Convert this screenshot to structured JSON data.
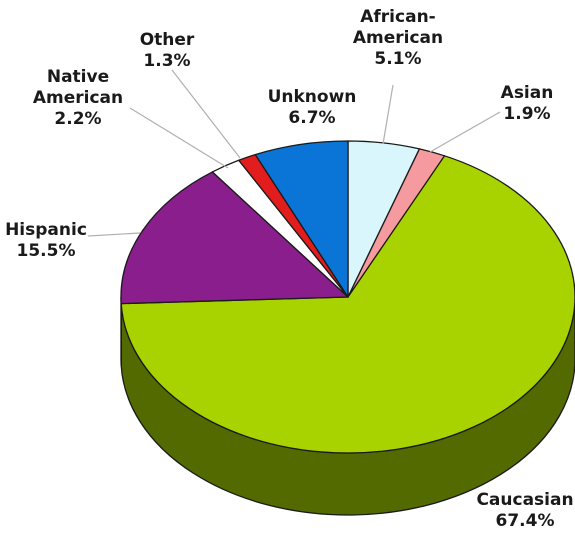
{
  "chart_data": {
    "type": "pie",
    "title": "",
    "style": "3d",
    "start": "12 o'clock, clockwise",
    "slices": [
      {
        "name": "African-American",
        "label": [
          "African-",
          "American"
        ],
        "value": 5.1,
        "value_label": "5.1%",
        "color": "#d8f6fb"
      },
      {
        "name": "Asian",
        "label": [
          "Asian"
        ],
        "value": 1.9,
        "value_label": "1.9%",
        "color": "#f59a9e"
      },
      {
        "name": "Caucasian",
        "label": [
          "Caucasian"
        ],
        "value": 67.4,
        "value_label": "67.4%",
        "color": "#a8d200",
        "side_color": "#526a00"
      },
      {
        "name": "Hispanic",
        "label": [
          "Hispanic"
        ],
        "value": 15.5,
        "value_label": "15.5%",
        "color": "#8a1e8c"
      },
      {
        "name": "Native American",
        "label": [
          "Native",
          "American"
        ],
        "value": 2.2,
        "value_label": "2.2%",
        "color": "#ffffff"
      },
      {
        "name": "Other",
        "label": [
          "Other"
        ],
        "value": 1.3,
        "value_label": "1.3%",
        "color": "#e21d1d"
      },
      {
        "name": "Unknown",
        "label": [
          "Unknown"
        ],
        "value": 6.7,
        "value_label": "6.7%",
        "color": "#0a75d6"
      }
    ]
  }
}
